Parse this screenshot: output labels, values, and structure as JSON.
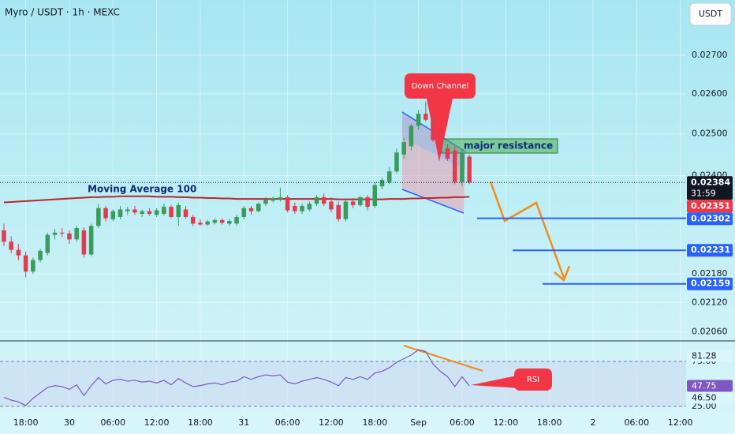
{
  "chart_data": {
    "type": "candlestick",
    "title": "Myro / USDT · 1h · MEXC",
    "currency_button": "USDT",
    "log_scale": true,
    "grid": true,
    "up_color": "#3a9b5c",
    "down_color": "#e23a4e",
    "ylim": [
      0.02045,
      0.0285
    ],
    "yticks": [
      {
        "value": 0.027,
        "label": "0.02700"
      },
      {
        "value": 0.026,
        "label": "0.02600"
      },
      {
        "value": 0.025,
        "label": "0.02500"
      },
      {
        "value": 0.024,
        "label": "0.02400"
      },
      {
        "value": 0.0218,
        "label": "0.02180"
      },
      {
        "value": 0.0212,
        "label": "0.02120"
      },
      {
        "value": 0.0206,
        "label": "0.02060"
      }
    ],
    "xlim": [
      -0.54,
      93.8
    ],
    "xticks": [
      {
        "value": 3,
        "label": "18:00"
      },
      {
        "value": 9,
        "label": "30"
      },
      {
        "value": 15,
        "label": "06:00"
      },
      {
        "value": 21,
        "label": "12:00"
      },
      {
        "value": 27,
        "label": "18:00"
      },
      {
        "value": 33,
        "label": "31"
      },
      {
        "value": 39,
        "label": "06:00"
      },
      {
        "value": 45,
        "label": "12:00"
      },
      {
        "value": 51,
        "label": "18:00"
      },
      {
        "value": 57,
        "label": "Sep"
      },
      {
        "value": 63,
        "label": "06:00"
      },
      {
        "value": 69,
        "label": "12:00"
      },
      {
        "value": 75,
        "label": "18:00"
      },
      {
        "value": 81,
        "label": "2"
      },
      {
        "value": 87,
        "label": "06:00"
      },
      {
        "value": 93,
        "label": "12:00"
      }
    ],
    "candles": {
      "open": [
        0.02275,
        0.0225,
        0.02232,
        0.0222,
        0.02185,
        0.0221,
        0.02225,
        0.02265,
        0.0227,
        0.02268,
        0.02255,
        0.02275,
        0.02222,
        0.02285,
        0.02325,
        0.023,
        0.02305,
        0.02318,
        0.02322,
        0.02312,
        0.02318,
        0.0231,
        0.02312,
        0.02328,
        0.02305,
        0.02322,
        0.02305,
        0.02292,
        0.02288,
        0.02292,
        0.02298,
        0.0229,
        0.0229,
        0.02305,
        0.02325,
        0.02318,
        0.02335,
        0.02342,
        0.02345,
        0.0235,
        0.0233,
        0.02318,
        0.02322,
        0.02335,
        0.0235,
        0.0234,
        0.02332,
        0.023,
        0.0234,
        0.02332,
        0.0235,
        0.0233,
        0.02375,
        0.02385,
        0.0241,
        0.0245,
        0.0247,
        0.0252,
        0.0255,
        0.02545,
        0.025,
        0.02465,
        0.0246,
        0.02385,
        0.02445
      ],
      "high": [
        0.0229,
        0.02262,
        0.02245,
        0.02228,
        0.02215,
        0.02235,
        0.0227,
        0.02278,
        0.0228,
        0.02275,
        0.02285,
        0.02282,
        0.0229,
        0.02335,
        0.0233,
        0.02322,
        0.0233,
        0.02328,
        0.0233,
        0.02322,
        0.02325,
        0.02325,
        0.02335,
        0.02332,
        0.02338,
        0.0233,
        0.0231,
        0.023,
        0.02298,
        0.02302,
        0.02302,
        0.023,
        0.0231,
        0.0233,
        0.0233,
        0.02338,
        0.0235,
        0.02352,
        0.02372,
        0.02355,
        0.02338,
        0.02335,
        0.0234,
        0.02355,
        0.02358,
        0.0235,
        0.0234,
        0.02345,
        0.02348,
        0.02352,
        0.02355,
        0.02385,
        0.02395,
        0.0242,
        0.02465,
        0.0249,
        0.02525,
        0.0256,
        0.0258,
        0.02555,
        0.0251,
        0.02475,
        0.0247,
        0.0246,
        0.0245
      ],
      "low": [
        0.0224,
        0.02225,
        0.0221,
        0.02173,
        0.0218,
        0.02205,
        0.0222,
        0.02255,
        0.0226,
        0.02245,
        0.0225,
        0.02215,
        0.02218,
        0.0228,
        0.02295,
        0.02295,
        0.023,
        0.0231,
        0.0231,
        0.02305,
        0.02308,
        0.02305,
        0.02308,
        0.02302,
        0.02285,
        0.023,
        0.02285,
        0.02285,
        0.02285,
        0.02288,
        0.02288,
        0.02285,
        0.02285,
        0.023,
        0.0231,
        0.02315,
        0.0233,
        0.02338,
        0.0234,
        0.02315,
        0.02312,
        0.02312,
        0.02318,
        0.0233,
        0.0233,
        0.02315,
        0.02295,
        0.02295,
        0.02325,
        0.02328,
        0.0232,
        0.02325,
        0.02368,
        0.0238,
        0.02405,
        0.0244,
        0.0246,
        0.0251,
        0.0253,
        0.0248,
        0.0245,
        0.02435,
        0.0238,
        0.02375,
        0.0238
      ],
      "close": [
        0.0225,
        0.02232,
        0.0222,
        0.02185,
        0.0221,
        0.0223,
        0.02265,
        0.0227,
        0.02268,
        0.02255,
        0.0228,
        0.02222,
        0.02285,
        0.02325,
        0.02302,
        0.02318,
        0.02322,
        0.02322,
        0.02315,
        0.02318,
        0.02312,
        0.0232,
        0.02328,
        0.02305,
        0.02332,
        0.02305,
        0.0229,
        0.02288,
        0.02295,
        0.02298,
        0.02292,
        0.02296,
        0.02305,
        0.02325,
        0.02318,
        0.02335,
        0.02345,
        0.02348,
        0.0235,
        0.0232,
        0.02318,
        0.0233,
        0.02335,
        0.0235,
        0.02335,
        0.02322,
        0.023,
        0.0234,
        0.02332,
        0.0235,
        0.02328,
        0.02378,
        0.0239,
        0.0241,
        0.02455,
        0.0248,
        0.0252,
        0.0255,
        0.02535,
        0.02485,
        0.02465,
        0.0244,
        0.02385,
        0.02455,
        0.02384
      ]
    },
    "moving_average": {
      "name": "Moving Average 100",
      "color": "#b7282e",
      "values": [
        0.02338,
        0.02339,
        0.0234,
        0.02341,
        0.02342,
        0.02343,
        0.02344,
        0.02345,
        0.02346,
        0.02347,
        0.02348,
        0.02349,
        0.0235,
        0.0235,
        0.02351,
        0.02351,
        0.02352,
        0.02352,
        0.02352,
        0.02352,
        0.02352,
        0.02351,
        0.02351,
        0.02351,
        0.0235,
        0.0235,
        0.02349,
        0.02349,
        0.02348,
        0.02348,
        0.02347,
        0.02347,
        0.02346,
        0.02346,
        0.02346,
        0.02346,
        0.02346,
        0.02346,
        0.02346,
        0.02346,
        0.02346,
        0.02346,
        0.02346,
        0.02346,
        0.02346,
        0.02346,
        0.02345,
        0.02345,
        0.02345,
        0.02345,
        0.02345,
        0.02345,
        0.02345,
        0.02346,
        0.02346,
        0.02346,
        0.02347,
        0.02347,
        0.02348,
        0.02348,
        0.02349,
        0.02349,
        0.0235,
        0.0235,
        0.02351
      ]
    },
    "countdown": "31:59",
    "targets": [
      0.02302,
      0.02231,
      0.02159
    ],
    "annotations": {
      "down_channel": "Down Channel",
      "major_resistance": "major resistance",
      "rsi": "RSI"
    },
    "rsi": {
      "color": "#7e57c2",
      "ylim": [
        20.6,
        97.8
      ],
      "yticks": [
        {
          "value": 75,
          "label": "75.00"
        },
        {
          "value": 25,
          "label": "25.00"
        }
      ],
      "values": [
        35,
        32,
        30,
        26,
        34,
        40,
        46,
        48,
        47,
        44,
        49,
        37,
        48,
        57,
        50,
        54,
        55,
        53,
        54,
        52,
        53,
        51,
        54,
        49,
        56,
        51,
        47,
        48,
        50,
        51,
        49,
        52,
        53,
        58,
        55,
        58,
        60,
        59,
        60,
        52,
        50,
        53,
        55,
        57,
        55,
        52,
        48,
        57,
        55,
        58,
        55,
        62,
        64,
        68,
        74,
        78,
        82,
        88,
        86,
        72,
        64,
        58,
        47,
        58,
        47.75
      ],
      "labels": [
        81.28,
        {
          "value": 46.5,
          "label": "46.50"
        }
      ]
    }
  }
}
